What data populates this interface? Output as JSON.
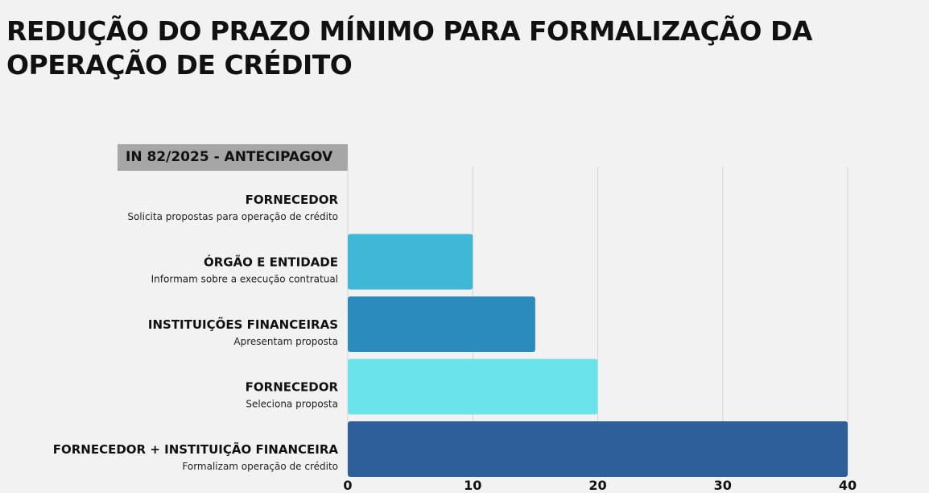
{
  "title": "REDUÇÃO DO PRAZO MÍNIMO PARA FORMALIZAÇÃO DA OPERAÇÃO DE CRÉDITO",
  "subtitle": "IN 82/2025 - ANTECIPAGOV",
  "chart_data": {
    "type": "bar",
    "orientation": "horizontal",
    "categories": [
      {
        "label": "FORNECEDOR",
        "sublabel": "Solicita propostas para operação de crédito"
      },
      {
        "label": "ÓRGÃO E ENTIDADE",
        "sublabel": "Informam sobre a execução contratual"
      },
      {
        "label": "INSTITUIÇÕES FINANCEIRAS",
        "sublabel": "Apresentam proposta"
      },
      {
        "label": "FORNECEDOR",
        "sublabel": "Seleciona proposta"
      },
      {
        "label": "FORNECEDOR + INSTITUIÇÃO FINANCEIRA",
        "sublabel": "Formalizam operação de crédito"
      }
    ],
    "values": [
      0,
      10,
      15,
      20,
      40
    ],
    "colors": [
      "#3fb7d6",
      "#3fb7d6",
      "#2b8bbd",
      "#6ae3ea",
      "#2e5f99"
    ],
    "xlim": [
      0,
      40
    ],
    "xticks": [
      "0",
      "10",
      "20",
      "30",
      "40"
    ],
    "grid": true,
    "legend": "none"
  }
}
